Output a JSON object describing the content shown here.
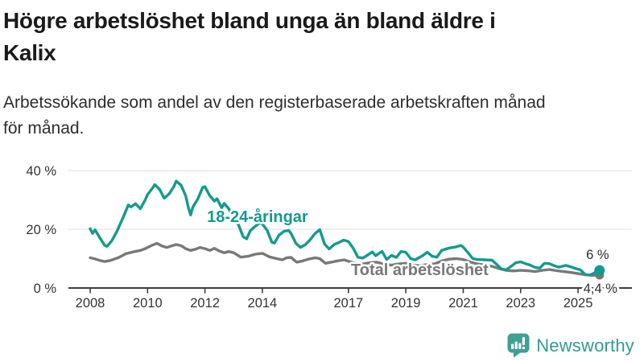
{
  "header": {
    "title_lines": [
      "Högre arbetslöshet bland unga än bland äldre i",
      "Kalix"
    ],
    "subtitle_lines": [
      "Arbetssökande som andel av den registerbaserade arbetskraften månad",
      "för månad."
    ]
  },
  "footer": {
    "brand": "Newsworthy",
    "logo_icon": "newsworthy-chart-bubble-icon"
  },
  "colors": {
    "teal": "#149a8d",
    "gray": "#787878",
    "grid": "#dcdcdc",
    "axis": "#3d3d3d",
    "text": "#333333",
    "title": "#1a1a1a",
    "brand": "#2f9d90"
  },
  "chart_data": {
    "type": "line",
    "unit": "%",
    "title": "Högre arbetslöshet bland unga än bland äldre i Kalix",
    "subtitle": "Arbetssökande som andel av den registerbaserade arbetskraften månad för månad.",
    "x_axis": {
      "range": [
        2007.25,
        2025.9
      ],
      "ticks": [
        {
          "year": 2008,
          "label": "2008"
        },
        {
          "year": 2010,
          "label": "2010"
        },
        {
          "year": 2012,
          "label": "2012"
        },
        {
          "year": 2014,
          "label": "2014"
        },
        {
          "year": 2017,
          "label": "2017"
        },
        {
          "year": 2019,
          "label": "2019"
        },
        {
          "year": 2021,
          "label": "2021"
        },
        {
          "year": 2023,
          "label": "2023"
        },
        {
          "year": 2025,
          "label": "2025"
        }
      ]
    },
    "y_axis": {
      "range": [
        0,
        42
      ],
      "grid": true,
      "ticks": [
        {
          "value": 0,
          "label": "0 %"
        },
        {
          "value": 20,
          "label": "20 %"
        },
        {
          "value": 40,
          "label": "40 %"
        }
      ]
    },
    "series": [
      {
        "id": "total",
        "name": "Total arbetslöshet",
        "color": "#787878",
        "end_dot_r": 5.5,
        "label": {
          "text": "Total arbetslöshet",
          "year": 2017.09,
          "pct": 4.4
        },
        "points": [
          [
            2008.0,
            10.3
          ],
          [
            2008.17,
            9.9
          ],
          [
            2008.33,
            9.4
          ],
          [
            2008.5,
            9.0
          ],
          [
            2008.67,
            9.3
          ],
          [
            2008.83,
            9.8
          ],
          [
            2009.0,
            10.4
          ],
          [
            2009.25,
            11.7
          ],
          [
            2009.5,
            12.3
          ],
          [
            2009.75,
            12.8
          ],
          [
            2009.92,
            13.4
          ],
          [
            2010.0,
            13.8
          ],
          [
            2010.17,
            14.6
          ],
          [
            2010.33,
            15.2
          ],
          [
            2010.5,
            14.3
          ],
          [
            2010.67,
            13.8
          ],
          [
            2010.83,
            14.3
          ],
          [
            2011.0,
            14.8
          ],
          [
            2011.17,
            14.4
          ],
          [
            2011.33,
            13.4
          ],
          [
            2011.5,
            12.8
          ],
          [
            2011.67,
            13.2
          ],
          [
            2011.83,
            13.8
          ],
          [
            2012.0,
            13.4
          ],
          [
            2012.17,
            12.8
          ],
          [
            2012.33,
            13.5
          ],
          [
            2012.5,
            12.6
          ],
          [
            2012.67,
            12.0
          ],
          [
            2012.83,
            12.4
          ],
          [
            2013.0,
            12.0
          ],
          [
            2013.25,
            10.5
          ],
          [
            2013.5,
            10.8
          ],
          [
            2013.75,
            11.5
          ],
          [
            2014.0,
            11.8
          ],
          [
            2014.25,
            10.6
          ],
          [
            2014.5,
            10.0
          ],
          [
            2014.7,
            9.6
          ],
          [
            2014.85,
            10.3
          ],
          [
            2015.0,
            10.4
          ],
          [
            2015.2,
            8.8
          ],
          [
            2015.4,
            9.2
          ],
          [
            2015.6,
            9.8
          ],
          [
            2015.85,
            10.3
          ],
          [
            2016.0,
            10.0
          ],
          [
            2016.2,
            8.4
          ],
          [
            2016.4,
            8.8
          ],
          [
            2016.6,
            9.2
          ],
          [
            2016.85,
            9.6
          ],
          [
            2017.0,
            9.1
          ],
          [
            2017.25,
            8.4
          ],
          [
            2017.5,
            8.2
          ],
          [
            2017.75,
            8.6
          ],
          [
            2018.0,
            8.8
          ],
          [
            2018.25,
            8.0
          ],
          [
            2018.5,
            7.8
          ],
          [
            2018.75,
            8.2
          ],
          [
            2019.0,
            8.4
          ],
          [
            2019.25,
            7.8
          ],
          [
            2019.5,
            7.6
          ],
          [
            2019.75,
            8.0
          ],
          [
            2020.0,
            8.2
          ],
          [
            2020.25,
            9.2
          ],
          [
            2020.5,
            9.8
          ],
          [
            2020.75,
            10.0
          ],
          [
            2021.0,
            9.7
          ],
          [
            2021.25,
            8.8
          ],
          [
            2021.5,
            8.2
          ],
          [
            2021.75,
            7.8
          ],
          [
            2022.0,
            7.4
          ],
          [
            2022.25,
            6.6
          ],
          [
            2022.5,
            6.0
          ],
          [
            2022.75,
            5.8
          ],
          [
            2023.0,
            6.0
          ],
          [
            2023.25,
            5.9
          ],
          [
            2023.5,
            5.6
          ],
          [
            2023.75,
            6.0
          ],
          [
            2024.0,
            6.3
          ],
          [
            2024.25,
            5.9
          ],
          [
            2024.5,
            5.6
          ],
          [
            2024.75,
            5.3
          ],
          [
            2025.0,
            4.9
          ],
          [
            2025.25,
            4.5
          ],
          [
            2025.5,
            4.3
          ],
          [
            2025.75,
            4.4
          ]
        ]
      },
      {
        "id": "youth",
        "name": "18-24-åringar",
        "color": "#149a8d",
        "end_dot_r": 6.5,
        "label": {
          "text": "18-24-åringar",
          "year": 2012.07,
          "pct": 22.5
        },
        "points": [
          [
            2008.0,
            20.2
          ],
          [
            2008.08,
            18.6
          ],
          [
            2008.17,
            19.8
          ],
          [
            2008.33,
            17.2
          ],
          [
            2008.5,
            14.6
          ],
          [
            2008.58,
            14.2
          ],
          [
            2008.75,
            16.0
          ],
          [
            2008.92,
            19.0
          ],
          [
            2009.0,
            20.8
          ],
          [
            2009.17,
            24.5
          ],
          [
            2009.33,
            28.3
          ],
          [
            2009.42,
            27.6
          ],
          [
            2009.58,
            28.7
          ],
          [
            2009.75,
            27.0
          ],
          [
            2009.92,
            30.0
          ],
          [
            2010.0,
            31.8
          ],
          [
            2010.17,
            34.0
          ],
          [
            2010.25,
            35.2
          ],
          [
            2010.42,
            33.6
          ],
          [
            2010.58,
            30.6
          ],
          [
            2010.75,
            32.0
          ],
          [
            2010.92,
            34.6
          ],
          [
            2011.0,
            36.4
          ],
          [
            2011.17,
            35.0
          ],
          [
            2011.33,
            31.4
          ],
          [
            2011.42,
            27.5
          ],
          [
            2011.5,
            24.9
          ],
          [
            2011.58,
            27.6
          ],
          [
            2011.75,
            30.3
          ],
          [
            2011.92,
            34.2
          ],
          [
            2012.0,
            34.5
          ],
          [
            2012.17,
            31.4
          ],
          [
            2012.33,
            29.6
          ],
          [
            2012.42,
            30.4
          ],
          [
            2012.58,
            27.3
          ],
          [
            2012.67,
            28.8
          ],
          [
            2012.83,
            27.0
          ],
          [
            2013.0,
            23.6
          ],
          [
            2013.17,
            21.5
          ],
          [
            2013.33,
            17.5
          ],
          [
            2013.45,
            16.7
          ],
          [
            2013.58,
            19.5
          ],
          [
            2013.75,
            21.0
          ],
          [
            2013.92,
            22.3
          ],
          [
            2014.0,
            21.8
          ],
          [
            2014.17,
            19.6
          ],
          [
            2014.33,
            15.6
          ],
          [
            2014.42,
            15.3
          ],
          [
            2014.58,
            18.0
          ],
          [
            2014.75,
            19.3
          ],
          [
            2014.92,
            19.6
          ],
          [
            2015.0,
            18.6
          ],
          [
            2015.17,
            15.2
          ],
          [
            2015.33,
            13.8
          ],
          [
            2015.5,
            14.8
          ],
          [
            2015.67,
            16.5
          ],
          [
            2015.83,
            18.5
          ],
          [
            2016.0,
            19.9
          ],
          [
            2016.17,
            14.9
          ],
          [
            2016.33,
            13.3
          ],
          [
            2016.5,
            14.8
          ],
          [
            2016.67,
            15.5
          ],
          [
            2016.83,
            16.3
          ],
          [
            2017.0,
            15.8
          ],
          [
            2017.17,
            13.5
          ],
          [
            2017.33,
            10.5
          ],
          [
            2017.5,
            10.2
          ],
          [
            2017.67,
            11.2
          ],
          [
            2017.83,
            12.3
          ],
          [
            2017.95,
            11.0
          ],
          [
            2018.08,
            11.9
          ],
          [
            2018.17,
            12.5
          ],
          [
            2018.33,
            9.7
          ],
          [
            2018.5,
            11.1
          ],
          [
            2018.67,
            10.4
          ],
          [
            2018.83,
            12.4
          ],
          [
            2019.0,
            12.2
          ],
          [
            2019.17,
            10.0
          ],
          [
            2019.33,
            9.6
          ],
          [
            2019.58,
            11.0
          ],
          [
            2019.75,
            12.2
          ],
          [
            2019.92,
            10.8
          ],
          [
            2020.08,
            10.5
          ],
          [
            2020.25,
            12.8
          ],
          [
            2020.5,
            13.6
          ],
          [
            2020.75,
            14.0
          ],
          [
            2020.92,
            14.5
          ],
          [
            2021.0,
            13.9
          ],
          [
            2021.17,
            12.0
          ],
          [
            2021.33,
            10.0
          ],
          [
            2021.5,
            9.7
          ],
          [
            2021.75,
            9.6
          ],
          [
            2022.0,
            9.5
          ],
          [
            2022.17,
            8.0
          ],
          [
            2022.33,
            6.5
          ],
          [
            2022.5,
            6.2
          ],
          [
            2022.67,
            7.4
          ],
          [
            2022.83,
            8.6
          ],
          [
            2023.0,
            8.9
          ],
          [
            2023.17,
            8.3
          ],
          [
            2023.33,
            7.8
          ],
          [
            2023.5,
            7.0
          ],
          [
            2023.67,
            6.8
          ],
          [
            2023.83,
            8.4
          ],
          [
            2024.0,
            8.3
          ],
          [
            2024.17,
            7.6
          ],
          [
            2024.33,
            7.1
          ],
          [
            2024.58,
            7.7
          ],
          [
            2024.75,
            7.2
          ],
          [
            2024.92,
            6.6
          ],
          [
            2025.08,
            6.2
          ],
          [
            2025.25,
            4.6
          ],
          [
            2025.42,
            4.4
          ],
          [
            2025.58,
            5.2
          ],
          [
            2025.75,
            6.0
          ]
        ]
      }
    ],
    "annotations": [
      {
        "text": "6 %",
        "year": 2025.68,
        "pct": 9.9,
        "halo": false
      },
      {
        "text": "4,4 %",
        "year": 2025.78,
        "pct": -1.7,
        "halo": true
      }
    ],
    "legend_position": "inline-labels"
  }
}
